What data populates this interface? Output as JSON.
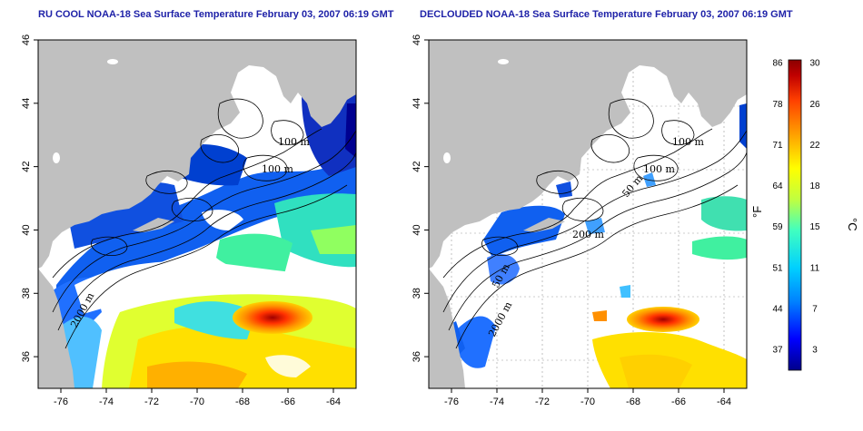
{
  "panels": [
    {
      "id": "left",
      "title": "RU COOL NOAA-18 Sea Surface Temperature February 03, 2007 06:19 GMT",
      "contour_labels": [
        "100 m",
        "100 m",
        "2000 m"
      ]
    },
    {
      "id": "right",
      "title": "DECLOUDED NOAA-18 Sea Surface Temperature February 03, 2007 06:19 GMT",
      "contour_labels": [
        "100 m",
        "100 m",
        "50 m",
        "200 m",
        "50 m",
        "2000 m"
      ]
    }
  ],
  "axes": {
    "lon_ticks": [
      "-76",
      "-74",
      "-72",
      "-70",
      "-68",
      "-66",
      "-64"
    ],
    "lat_ticks": [
      "46",
      "44",
      "42",
      "40",
      "38",
      "36"
    ],
    "lon_range": [
      -77,
      -63
    ],
    "lat_range": [
      35,
      46
    ]
  },
  "colorbar": {
    "fahrenheit_labels": [
      "86",
      "78",
      "71",
      "64",
      "59",
      "51",
      "44",
      "37"
    ],
    "celsius_labels": [
      "30",
      "26",
      "22",
      "18",
      "15",
      "11",
      "7",
      "3"
    ],
    "fahrenheit_unit": "°F",
    "celsius_unit": "°C",
    "range_c": [
      0,
      30
    ],
    "colors": [
      "#00008b",
      "#0000ff",
      "#0080ff",
      "#00d0ff",
      "#40ffc0",
      "#c0ff40",
      "#ffff00",
      "#ffa000",
      "#ff4000",
      "#c00000",
      "#8b0000"
    ]
  },
  "colors": {
    "land": "#c0c0c0",
    "ocean_nodata": "#ffffff",
    "title": "#1f22a8"
  }
}
